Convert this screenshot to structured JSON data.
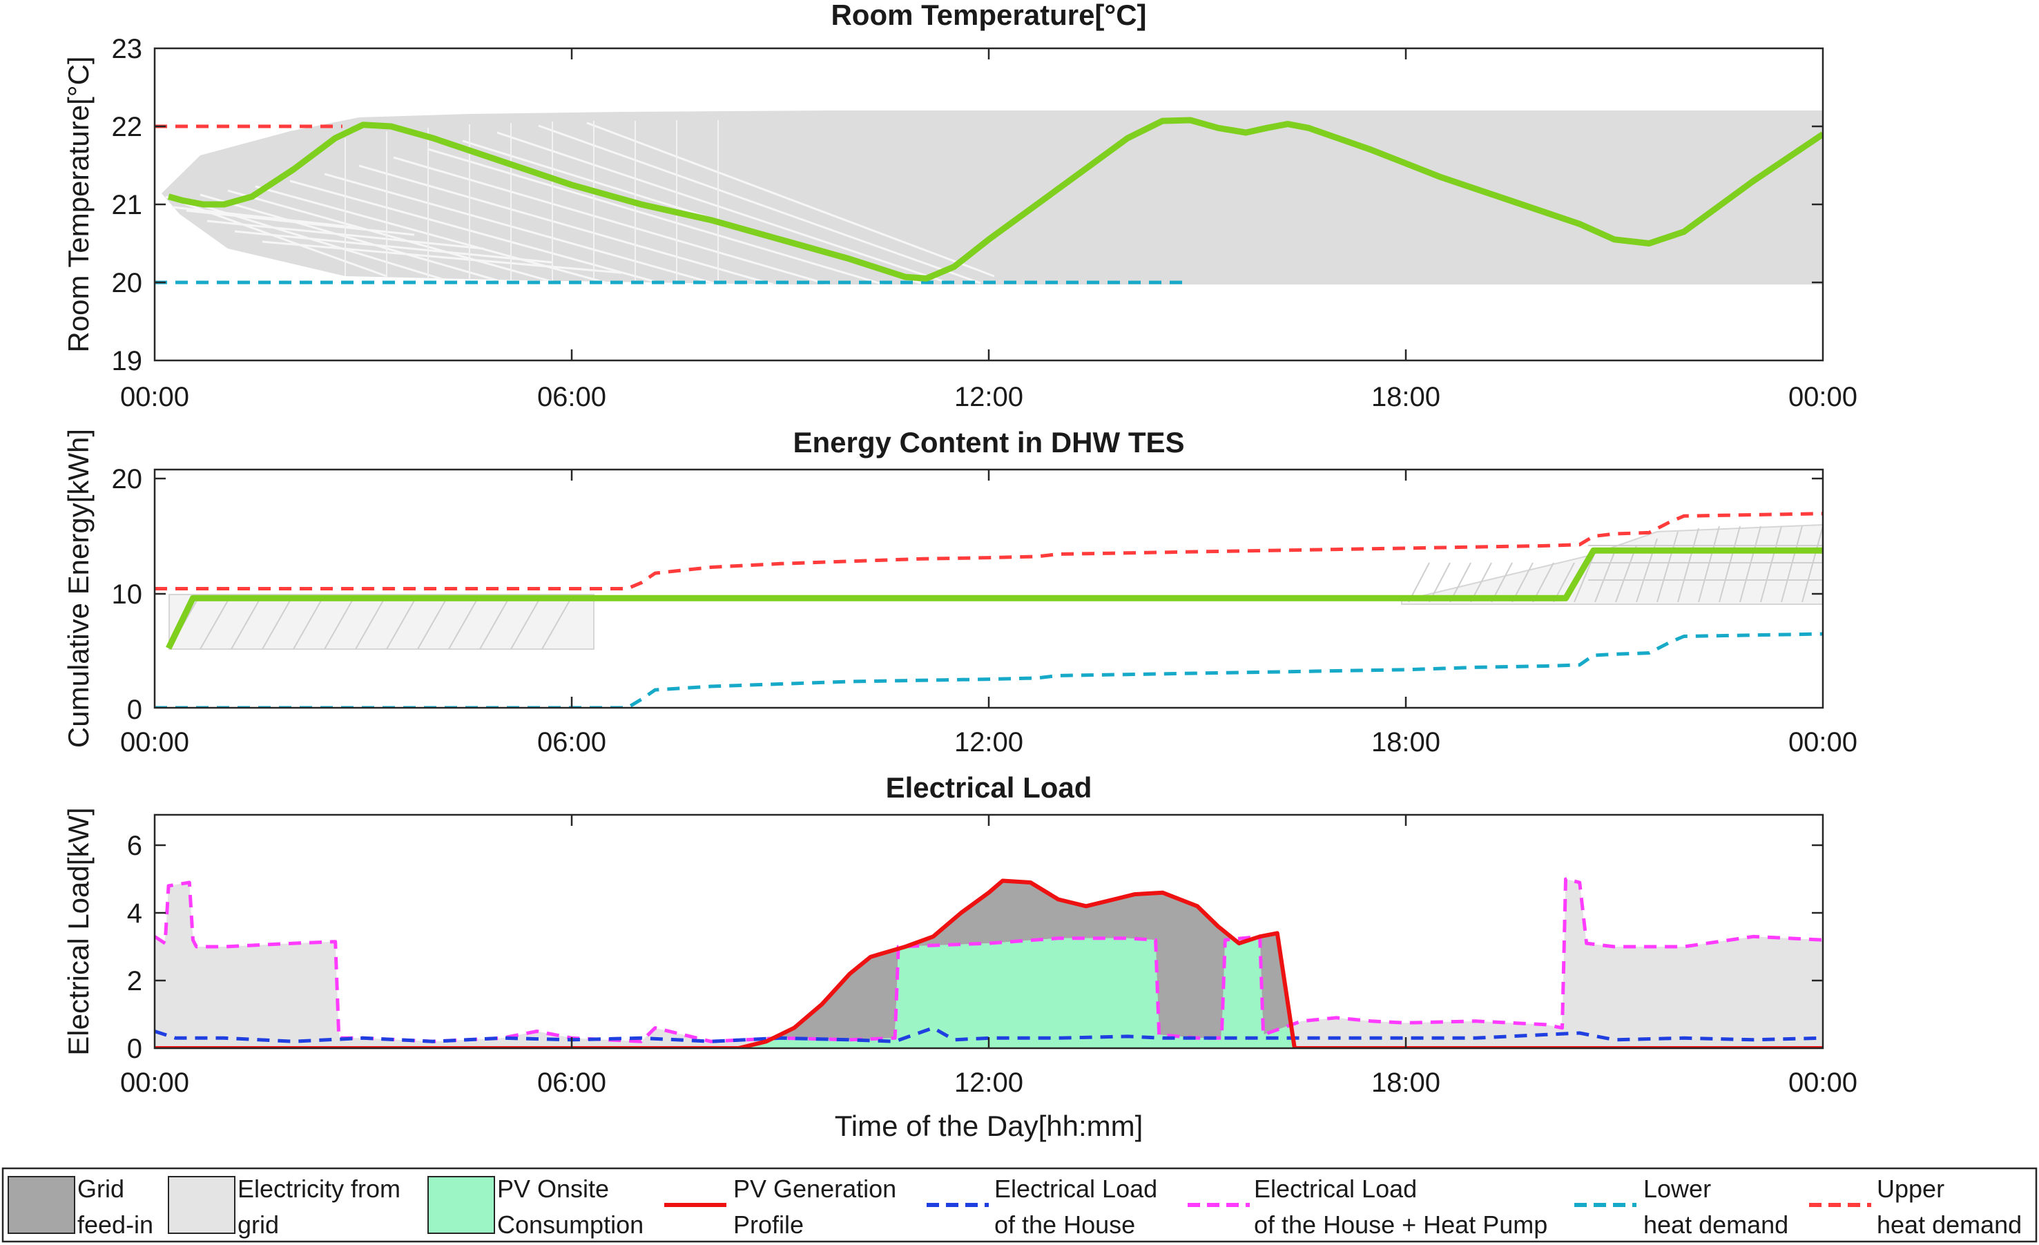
{
  "chart_data": [
    {
      "type": "line",
      "title": "Room Temperature[°C]",
      "xlabel": "",
      "ylabel": "Room Temperature[°C]",
      "x_ticks": [
        "00:00",
        "06:00",
        "12:00",
        "18:00",
        "00:00"
      ],
      "y_ticks": [
        "19",
        "20",
        "21",
        "22",
        "23"
      ],
      "xlim": [
        0,
        24
      ],
      "ylim": [
        19,
        23
      ],
      "grid": false,
      "series": [
        {
          "name": "Upper heat demand",
          "color": "#ff3b3b",
          "style": "dashed",
          "x": [
            0,
            2.7
          ],
          "y": [
            22.0,
            22.0
          ]
        },
        {
          "name": "Lower heat demand",
          "color": "#17a9c8",
          "style": "dashed",
          "x": [
            0,
            14.8
          ],
          "y": [
            20.0,
            20.0
          ]
        },
        {
          "name": "",
          "color": "#7fcf1f",
          "style": "solid",
          "x": [
            0.2,
            0.4,
            0.7,
            1.0,
            1.4,
            2.0,
            2.6,
            3.0,
            3.4,
            4.0,
            5.0,
            6.0,
            7.0,
            8.0,
            9.0,
            10.0,
            10.8,
            11.1,
            11.5,
            12.0,
            13.0,
            14.0,
            14.5,
            14.9,
            15.3,
            15.7,
            16.0,
            16.3,
            16.6,
            17.5,
            18.5,
            19.5,
            20.5,
            21.0,
            21.5,
            22.0,
            23.0,
            24.0
          ],
          "y": [
            21.1,
            21.05,
            21.0,
            21.0,
            21.1,
            21.45,
            21.85,
            22.02,
            22.0,
            21.85,
            21.55,
            21.25,
            21.0,
            20.8,
            20.55,
            20.3,
            20.07,
            20.05,
            20.2,
            20.55,
            21.2,
            21.85,
            22.07,
            22.08,
            21.98,
            21.92,
            21.98,
            22.03,
            21.98,
            21.7,
            21.35,
            21.05,
            20.75,
            20.55,
            20.5,
            20.65,
            21.3,
            21.9
          ]
        }
      ]
    },
    {
      "type": "line",
      "title": "Energy Content in DHW TES",
      "xlabel": "",
      "ylabel": "Cumulative Energy[kWh]",
      "x_ticks": [
        "00:00",
        "06:00",
        "12:00",
        "18:00",
        "00:00"
      ],
      "y_ticks": [
        "0",
        "10",
        "20"
      ],
      "xlim": [
        0,
        24
      ],
      "ylim": [
        0,
        20
      ],
      "grid": false,
      "series": [
        {
          "name": "Upper heat demand",
          "color": "#ff3b3b",
          "style": "dashed",
          "x": [
            0,
            6.8,
            7.0,
            7.2,
            8.0,
            9.0,
            10.0,
            11.0,
            12.0,
            12.7,
            13.0,
            14.0,
            15.0,
            16.0,
            17.0,
            18.0,
            19.0,
            20.0,
            20.5,
            20.7,
            21.0,
            21.5,
            21.8,
            22.0,
            23.0,
            24.0
          ],
          "y": [
            10.0,
            10.0,
            10.5,
            11.3,
            11.8,
            12.1,
            12.3,
            12.5,
            12.6,
            12.7,
            12.9,
            13.0,
            13.1,
            13.2,
            13.3,
            13.4,
            13.5,
            13.6,
            13.7,
            14.4,
            14.6,
            14.7,
            15.6,
            16.1,
            16.2,
            16.3
          ]
        },
        {
          "name": "Lower heat demand",
          "color": "#17a9c8",
          "style": "dashed",
          "x": [
            0,
            6.8,
            7.0,
            7.2,
            8.0,
            9.0,
            10.0,
            11.0,
            12.0,
            12.7,
            13.0,
            14.0,
            15.0,
            16.0,
            17.0,
            18.0,
            19.0,
            20.0,
            20.5,
            20.7,
            21.0,
            21.5,
            21.8,
            22.0,
            23.0,
            24.0
          ],
          "y": [
            0.0,
            0.0,
            0.7,
            1.5,
            1.8,
            2.0,
            2.2,
            2.3,
            2.4,
            2.5,
            2.7,
            2.8,
            2.9,
            3.0,
            3.1,
            3.2,
            3.4,
            3.5,
            3.6,
            4.4,
            4.5,
            4.6,
            5.5,
            6.0,
            6.1,
            6.2
          ]
        },
        {
          "name": "",
          "color": "#7fcf1f",
          "style": "solid",
          "x": [
            0.2,
            0.55,
            20.3,
            20.7,
            24.0
          ],
          "y": [
            5.0,
            9.2,
            9.2,
            13.2,
            13.2
          ]
        }
      ]
    },
    {
      "type": "area",
      "title": "Electrical Load",
      "xlabel": "Time of the Day[hh:mm]",
      "ylabel": "Electrical Load[kW]",
      "x_ticks": [
        "00:00",
        "06:00",
        "12:00",
        "18:00",
        "00:00"
      ],
      "y_ticks": [
        "0",
        "2",
        "4",
        "6"
      ],
      "xlim": [
        0,
        24
      ],
      "ylim": [
        0,
        6.9
      ],
      "grid": false,
      "legend_position": "bottom",
      "series": [
        {
          "name": "Electrical Load of the House + Heat Pump",
          "color": "#ff3bff",
          "style": "dashed",
          "x": [
            0,
            0.15,
            0.2,
            0.5,
            0.55,
            0.6,
            1.0,
            2.0,
            2.6,
            2.65,
            3.0,
            4.0,
            5.0,
            5.5,
            6.0,
            7.0,
            7.2,
            8.0,
            9.0,
            10.0,
            10.65,
            10.7,
            12.0,
            13.0,
            14.0,
            14.4,
            14.45,
            15.0,
            15.35,
            15.4,
            15.9,
            15.95,
            16.5,
            17.0,
            17.5,
            18.0,
            19.0,
            20.0,
            20.25,
            20.3,
            20.5,
            20.6,
            21.0,
            22.0,
            23.0,
            24.0
          ],
          "y": [
            3.3,
            3.1,
            4.8,
            4.9,
            3.2,
            3.0,
            3.0,
            3.1,
            3.15,
            0.3,
            0.3,
            0.2,
            0.3,
            0.5,
            0.3,
            0.2,
            0.6,
            0.2,
            0.3,
            0.25,
            0.3,
            3.0,
            3.1,
            3.25,
            3.25,
            3.2,
            0.4,
            0.3,
            0.3,
            3.2,
            3.3,
            0.4,
            0.8,
            0.9,
            0.8,
            0.75,
            0.8,
            0.7,
            0.6,
            5.0,
            4.9,
            3.1,
            3.0,
            3.0,
            3.3,
            3.2
          ]
        },
        {
          "name": "Electrical Load of the House",
          "color": "#1f3fe0",
          "style": "dashed",
          "x": [
            0,
            0.3,
            1.0,
            2.0,
            3.0,
            4.0,
            5.0,
            6.0,
            7.0,
            8.0,
            9.0,
            10.0,
            10.65,
            11.2,
            11.5,
            12.0,
            13.0,
            14.0,
            14.5,
            15.0,
            16.0,
            17.0,
            18.0,
            19.0,
            20.0,
            20.5,
            21.0,
            22.0,
            23.0,
            24.0
          ],
          "y": [
            0.5,
            0.3,
            0.3,
            0.2,
            0.3,
            0.2,
            0.3,
            0.25,
            0.3,
            0.2,
            0.3,
            0.25,
            0.2,
            0.6,
            0.25,
            0.3,
            0.3,
            0.35,
            0.3,
            0.3,
            0.3,
            0.3,
            0.3,
            0.3,
            0.4,
            0.45,
            0.25,
            0.3,
            0.25,
            0.3
          ]
        },
        {
          "name": "PV Generation Profile",
          "color": "#ee1111",
          "style": "solid",
          "x": [
            0,
            8.4,
            8.8,
            9.2,
            9.6,
            10.0,
            10.3,
            10.8,
            11.2,
            11.6,
            12.0,
            12.2,
            12.6,
            13.0,
            13.4,
            13.8,
            14.1,
            14.5,
            15.0,
            15.3,
            15.6,
            15.9,
            16.15,
            16.4,
            24.0
          ],
          "y": [
            0,
            0,
            0.2,
            0.6,
            1.3,
            2.2,
            2.7,
            3.0,
            3.3,
            4.0,
            4.6,
            4.95,
            4.9,
            4.4,
            4.2,
            4.4,
            4.55,
            4.6,
            4.2,
            3.6,
            3.1,
            3.3,
            3.4,
            0,
            0
          ]
        }
      ]
    }
  ],
  "legend": {
    "items": [
      {
        "name": "grid-feed-in",
        "line1": "Grid",
        "line2": "feed-in",
        "kind": "patch",
        "color": "#a6a6a6"
      },
      {
        "name": "electricity-from-grid",
        "line1": "Electricity from",
        "line2": "grid",
        "kind": "patch",
        "color": "#e4e4e4"
      },
      {
        "name": "pv-onsite-consumption",
        "line1": "PV Onsite",
        "line2": "Consumption",
        "kind": "patch",
        "color": "#9bf5c5"
      },
      {
        "name": "pv-generation-profile",
        "line1": "PV Generation",
        "line2": "Profile",
        "kind": "solid",
        "color": "#ee1111"
      },
      {
        "name": "electrical-load-house",
        "line1": "Electrical Load",
        "line2": "of the House",
        "kind": "dashed",
        "color": "#1f3fe0"
      },
      {
        "name": "electrical-load-house-hp",
        "line1": "Electrical Load",
        "line2": "of the House + Heat Pump",
        "kind": "dashed",
        "color": "#ff3bff"
      },
      {
        "name": "lower-heat-demand",
        "line1": "Lower",
        "line2": "heat demand",
        "kind": "dashed",
        "color": "#17a9c8"
      },
      {
        "name": "upper-heat-demand",
        "line1": "Upper",
        "line2": "heat demand",
        "kind": "dashed",
        "color": "#ff3b3b"
      }
    ]
  }
}
